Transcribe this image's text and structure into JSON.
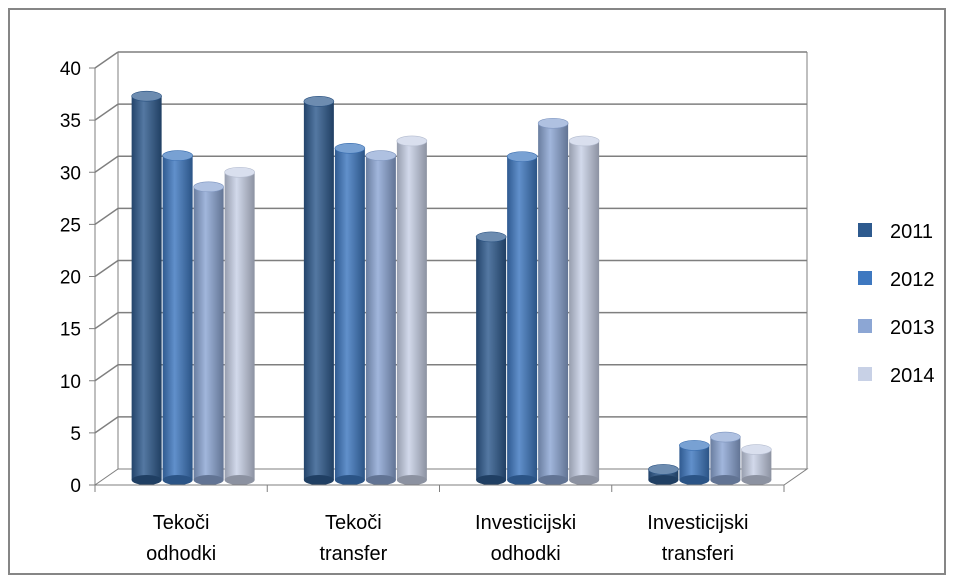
{
  "chart_data": {
    "type": "bar",
    "categories": [
      [
        "Tekoči",
        "odhodki"
      ],
      [
        "Tekoči",
        "transfer"
      ],
      [
        "Investicijski",
        "odhodki"
      ],
      [
        "Investicijski",
        "transferi"
      ]
    ],
    "series": [
      {
        "name": "2011",
        "color": "#2E5A8E",
        "values": [
          37.3,
          36.8,
          23.8,
          1.5
        ]
      },
      {
        "name": "2012",
        "color": "#3E78C0",
        "values": [
          31.6,
          32.3,
          31.5,
          3.8
        ]
      },
      {
        "name": "2013",
        "color": "#8CA6D4",
        "values": [
          28.6,
          31.6,
          34.7,
          4.6
        ]
      },
      {
        "name": "2014",
        "color": "#C8D1E6",
        "values": [
          30.0,
          33.0,
          33.0,
          3.4
        ]
      }
    ],
    "ylim": [
      0,
      40
    ],
    "yticks": [
      0,
      5,
      10,
      15,
      20,
      25,
      30,
      35,
      40
    ],
    "grid": true,
    "legend": "right",
    "three_d": true
  }
}
